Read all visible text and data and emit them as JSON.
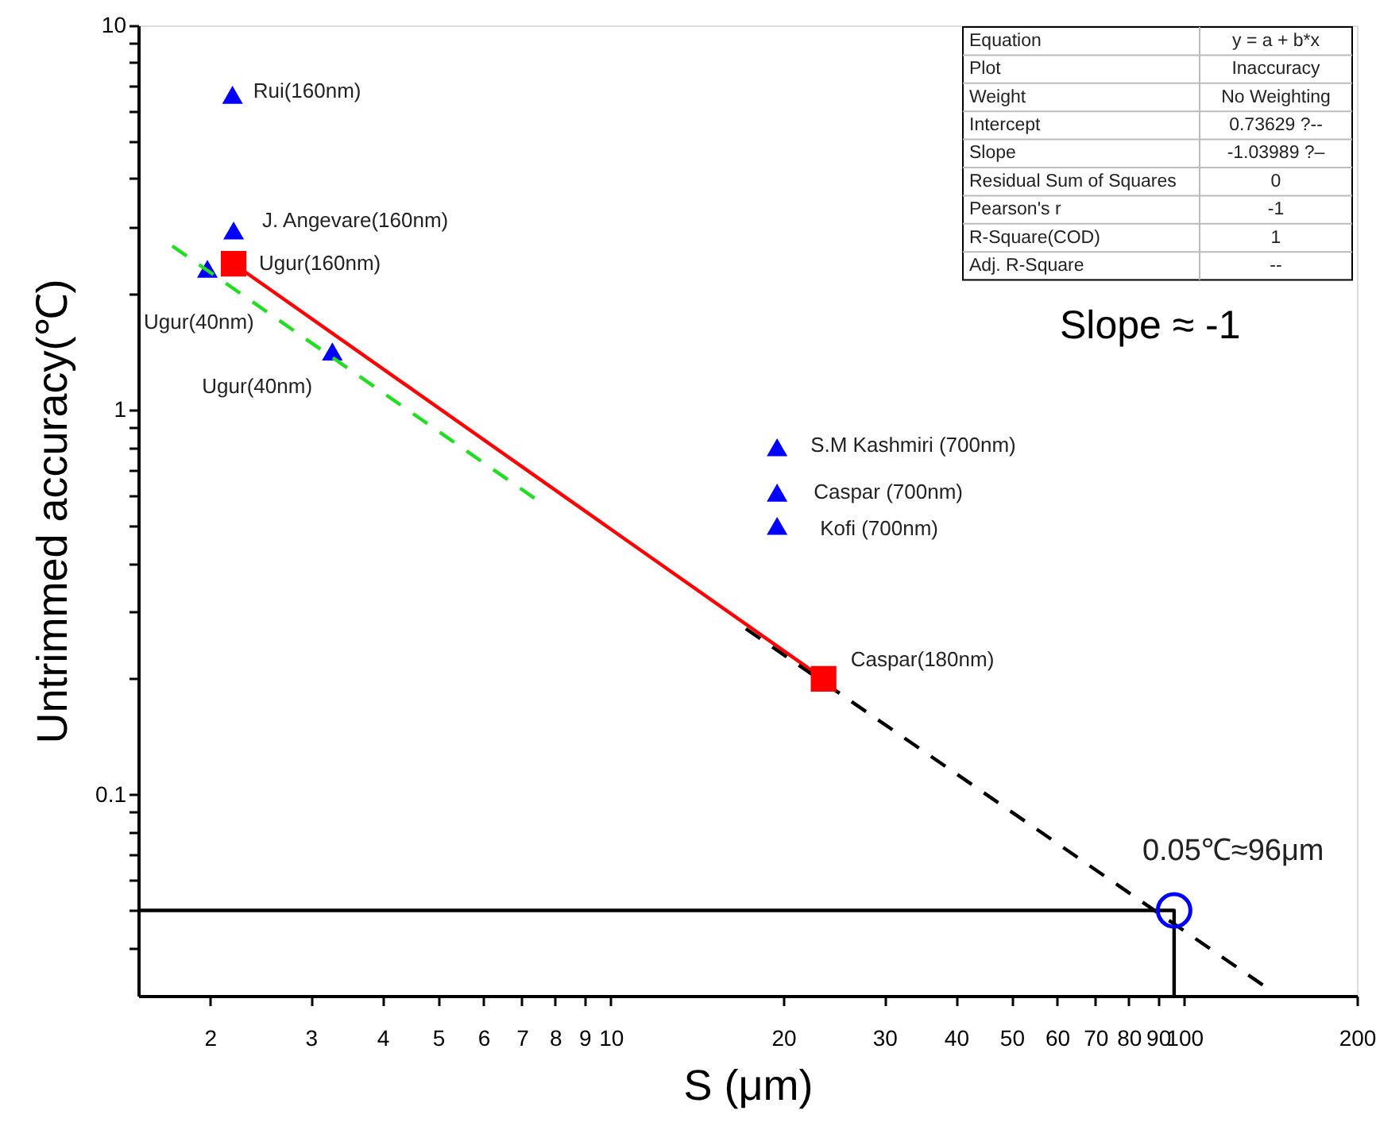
{
  "chart_data": {
    "type": "scatter",
    "xlabel": "S (μm)",
    "ylabel": "Untrimmed accuracy(℃)",
    "log": "xy",
    "grid": false,
    "xlim": [
      1.5,
      200
    ],
    "ylim": [
      0.03,
      10
    ],
    "xticks": [
      2,
      3,
      4,
      5,
      6,
      7,
      8,
      9,
      10,
      20,
      30,
      40,
      50,
      60,
      70,
      80,
      90,
      100,
      200
    ],
    "yticks": [
      {
        "value": 0.04,
        "label": null
      },
      {
        "value": 0.05,
        "label": null
      },
      {
        "value": 0.06,
        "label": null
      },
      {
        "value": 0.07,
        "label": null
      },
      {
        "value": 0.08,
        "label": null
      },
      {
        "value": 0.09,
        "label": null
      },
      0.1,
      {
        "value": 0.2,
        "label": null
      },
      {
        "value": 0.3,
        "label": null
      },
      {
        "value": 0.4,
        "label": null
      },
      {
        "value": 0.5,
        "label": null
      },
      {
        "value": 0.6,
        "label": null
      },
      {
        "value": 0.7,
        "label": null
      },
      {
        "value": 0.8,
        "label": null
      },
      {
        "value": 0.9,
        "label": null
      },
      1,
      {
        "value": 2,
        "label": null
      },
      {
        "value": 3,
        "label": null
      },
      {
        "value": 4,
        "label": null
      },
      {
        "value": 5,
        "label": null
      },
      {
        "value": 6,
        "label": null
      },
      {
        "value": 7,
        "label": null
      },
      {
        "value": 8,
        "label": null
      },
      {
        "value": 9,
        "label": null
      },
      10
    ],
    "series": [
      {
        "marker": "triangle",
        "color": "#0000ff",
        "x": [
          2.19,
          2.2,
          1.98,
          3.27,
          19.5,
          19.5,
          19.5
        ],
        "values": [
          6.6,
          2.93,
          2.33,
          1.42,
          0.8,
          0.61,
          0.5
        ]
      },
      {
        "type": "line",
        "line_style": "solid",
        "color": "#ff0000",
        "x": [
          2.2,
          23.5
        ],
        "values": [
          2.4,
          0.2
        ]
      },
      {
        "type": "line",
        "line_style": "dashed",
        "color": "#22dd22",
        "x": [
          1.72,
          7.36
        ],
        "values": [
          2.67,
          0.59
        ]
      },
      {
        "type": "line",
        "line_style": "dashed",
        "color": "#000000",
        "x": [
          17.2,
          137
        ],
        "values": [
          0.27,
          0.032
        ]
      },
      {
        "type": "line",
        "line_style": "solid",
        "color": "#000000",
        "x": [
          1.5,
          96,
          96
        ],
        "values": [
          0.05,
          0.05,
          0.03
        ]
      },
      {
        "type": "scatter",
        "marker": "square",
        "color": "#ff0000",
        "x": [
          2.2,
          23.5
        ],
        "values": [
          2.4,
          0.2
        ]
      },
      {
        "type": "scatter",
        "marker": "circle",
        "color": "#0000ff",
        "x": [
          96
        ],
        "values": [
          0.05
        ]
      }
    ],
    "annotations": [
      {
        "text": "Rui(160nm)",
        "x": 2.19,
        "y": 6.6
      },
      {
        "text": "J. Angevare(160nm)",
        "x": 2.2,
        "y": 2.93
      },
      {
        "text": "Ugur(160nm)",
        "x": 2.2,
        "y": 2.4
      },
      {
        "text": "Ugur(40nm)",
        "x": 1.98,
        "y": 2.33
      },
      {
        "text": "Ugur(40nm)",
        "x": 3.27,
        "y": 1.42
      },
      {
        "text": "S.M Kashmiri (700nm)",
        "x": 19.5,
        "y": 0.8
      },
      {
        "text": "Caspar (700nm)",
        "x": 19.5,
        "y": 0.61
      },
      {
        "text": "Kofi (700nm)",
        "x": 19.5,
        "y": 0.5
      },
      {
        "text": "Caspar(180nm)",
        "x": 23.5,
        "y": 0.2
      },
      {
        "text": "0.05℃≈96μm",
        "x": 96,
        "y": 0.05
      },
      "Slope ≈ -1",
      "Equation",
      "y = a + b*x",
      "Plot",
      "Inaccuracy",
      "Weight",
      "No Weighting",
      "Intercept",
      "0.73629 ?--",
      "Slope",
      "-1.03989 ?–",
      "Residual Sum of Squares",
      "0",
      "Pearson's r",
      "-1",
      "R-Square(COD)",
      "1",
      "Adj. R-Square",
      "--"
    ]
  }
}
